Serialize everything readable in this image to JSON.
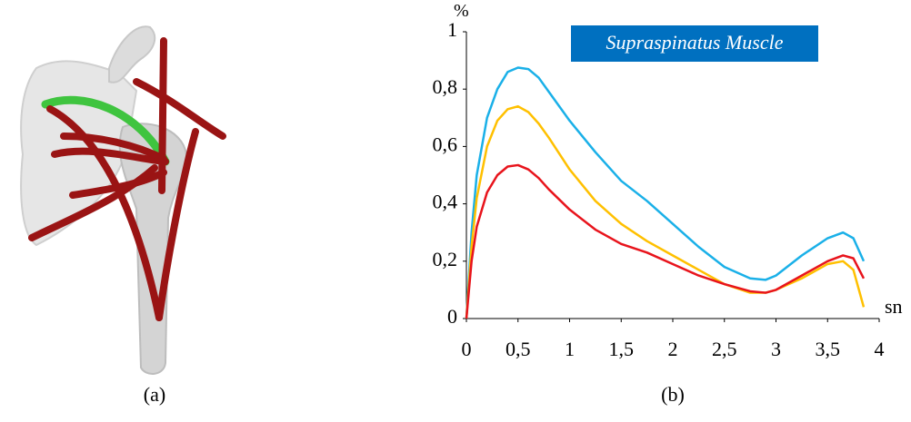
{
  "captions": [
    "(a)",
    "(b)"
  ],
  "chart_data": {
    "type": "line",
    "title": "Supraspinatus Muscle",
    "x_label": "sn",
    "y_label": "%",
    "x": [
      0,
      0.05,
      0.1,
      0.2,
      0.3,
      0.4,
      0.5,
      0.6,
      0.7,
      0.8,
      1,
      1.25,
      1.5,
      1.75,
      2,
      2.25,
      2.5,
      2.75,
      2.9,
      3,
      3.25,
      3.5,
      3.65,
      3.75,
      3.85
    ],
    "series": [
      {
        "color": "#1ab0e8",
        "values": [
          0,
          0.3,
          0.5,
          0.7,
          0.8,
          0.86,
          0.875,
          0.87,
          0.84,
          0.79,
          0.69,
          0.58,
          0.48,
          0.41,
          0.33,
          0.25,
          0.18,
          0.14,
          0.135,
          0.15,
          0.22,
          0.28,
          0.3,
          0.28,
          0.2
        ]
      },
      {
        "color": "#ffc000",
        "values": [
          0,
          0.25,
          0.42,
          0.6,
          0.69,
          0.73,
          0.74,
          0.72,
          0.68,
          0.63,
          0.52,
          0.41,
          0.33,
          0.27,
          0.22,
          0.17,
          0.12,
          0.09,
          0.09,
          0.1,
          0.14,
          0.19,
          0.2,
          0.17,
          0.04
        ]
      },
      {
        "color": "#e8141c",
        "values": [
          0,
          0.2,
          0.32,
          0.44,
          0.5,
          0.53,
          0.535,
          0.52,
          0.49,
          0.45,
          0.38,
          0.31,
          0.26,
          0.23,
          0.19,
          0.15,
          0.12,
          0.095,
          0.09,
          0.1,
          0.15,
          0.2,
          0.22,
          0.21,
          0.14
        ]
      }
    ],
    "xlim": [
      0,
      4
    ],
    "ylim": [
      0,
      1
    ],
    "xticks": [
      0,
      {
        "value": 0.5,
        "label": "0,5"
      },
      1,
      {
        "value": 1.5,
        "label": "1,5"
      },
      2,
      {
        "value": 2.5,
        "label": "2,5"
      },
      3,
      {
        "value": 3.5,
        "label": "3,5"
      },
      4
    ],
    "yticks": [
      0,
      {
        "value": 0.2,
        "label": "0,2"
      },
      {
        "value": 0.4,
        "label": "0,4"
      },
      {
        "value": 0.6,
        "label": "0,6"
      },
      {
        "value": 0.8,
        "label": "0,8"
      },
      1
    ],
    "grid": false
  }
}
